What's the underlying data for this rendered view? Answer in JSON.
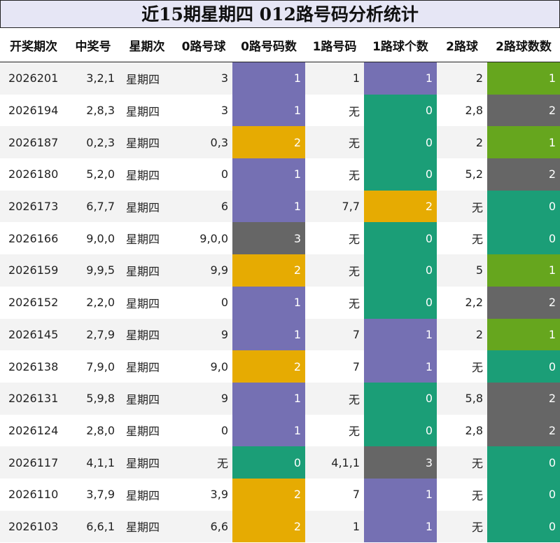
{
  "title": "近15期星期四 012路号码分析统计",
  "colors": {
    "1": "#7570b3",
    "0": "#1b9e77",
    "2": "#e6ab02",
    "3": "#666666"
  },
  "chart_data": {
    "type": "table",
    "columns": [
      "开奖期次",
      "中奖号",
      "星期次",
      "0路号球",
      "0路号码数",
      "1路号码",
      "1路球个数",
      "2路球",
      "2路球数数"
    ],
    "rows": [
      {
        "period": "2026201",
        "number": "3,2,1",
        "weekday": "星期四",
        "r0_balls": "3",
        "r0_count": 1,
        "r1_balls": "1",
        "r1_count": 1,
        "r2_balls": "2",
        "r2_count": 1
      },
      {
        "period": "2026194",
        "number": "2,8,3",
        "weekday": "星期四",
        "r0_balls": "3",
        "r0_count": 1,
        "r1_balls": "无",
        "r1_count": 0,
        "r2_balls": "2,8",
        "r2_count": 2
      },
      {
        "period": "2026187",
        "number": "0,2,3",
        "weekday": "星期四",
        "r0_balls": "0,3",
        "r0_count": 2,
        "r1_balls": "无",
        "r1_count": 0,
        "r2_balls": "2",
        "r2_count": 1
      },
      {
        "period": "2026180",
        "number": "5,2,0",
        "weekday": "星期四",
        "r0_balls": "0",
        "r0_count": 1,
        "r1_balls": "无",
        "r1_count": 0,
        "r2_balls": "5,2",
        "r2_count": 2
      },
      {
        "period": "2026173",
        "number": "6,7,7",
        "weekday": "星期四",
        "r0_balls": "6",
        "r0_count": 1,
        "r1_balls": "7,7",
        "r1_count": 2,
        "r2_balls": "无",
        "r2_count": 0
      },
      {
        "period": "2026166",
        "number": "9,0,0",
        "weekday": "星期四",
        "r0_balls": "9,0,0",
        "r0_count": 3,
        "r1_balls": "无",
        "r1_count": 0,
        "r2_balls": "无",
        "r2_count": 0
      },
      {
        "period": "2026159",
        "number": "9,9,5",
        "weekday": "星期四",
        "r0_balls": "9,9",
        "r0_count": 2,
        "r1_balls": "无",
        "r1_count": 0,
        "r2_balls": "5",
        "r2_count": 1
      },
      {
        "period": "2026152",
        "number": "2,2,0",
        "weekday": "星期四",
        "r0_balls": "0",
        "r0_count": 1,
        "r1_balls": "无",
        "r1_count": 0,
        "r2_balls": "2,2",
        "r2_count": 2
      },
      {
        "period": "2026145",
        "number": "2,7,9",
        "weekday": "星期四",
        "r0_balls": "9",
        "r0_count": 1,
        "r1_balls": "7",
        "r1_count": 1,
        "r2_balls": "2",
        "r2_count": 1
      },
      {
        "period": "2026138",
        "number": "7,9,0",
        "weekday": "星期四",
        "r0_balls": "9,0",
        "r0_count": 2,
        "r1_balls": "7",
        "r1_count": 1,
        "r2_balls": "无",
        "r2_count": 0
      },
      {
        "period": "2026131",
        "number": "5,9,8",
        "weekday": "星期四",
        "r0_balls": "9",
        "r0_count": 1,
        "r1_balls": "无",
        "r1_count": 0,
        "r2_balls": "5,8",
        "r2_count": 2
      },
      {
        "period": "2026124",
        "number": "2,8,0",
        "weekday": "星期四",
        "r0_balls": "0",
        "r0_count": 1,
        "r1_balls": "无",
        "r1_count": 0,
        "r2_balls": "2,8",
        "r2_count": 2
      },
      {
        "period": "2026117",
        "number": "4,1,1",
        "weekday": "星期四",
        "r0_balls": "无",
        "r0_count": 0,
        "r1_balls": "4,1,1",
        "r1_count": 3,
        "r2_balls": "无",
        "r2_count": 0
      },
      {
        "period": "2026110",
        "number": "3,7,9",
        "weekday": "星期四",
        "r0_balls": "3,9",
        "r0_count": 2,
        "r1_balls": "7",
        "r1_count": 1,
        "r2_balls": "无",
        "r2_count": 0
      },
      {
        "period": "2026103",
        "number": "6,6,1",
        "weekday": "星期四",
        "r0_balls": "6,6",
        "r0_count": 2,
        "r1_balls": "1",
        "r1_count": 1,
        "r2_balls": "无",
        "r2_count": 0
      }
    ]
  }
}
